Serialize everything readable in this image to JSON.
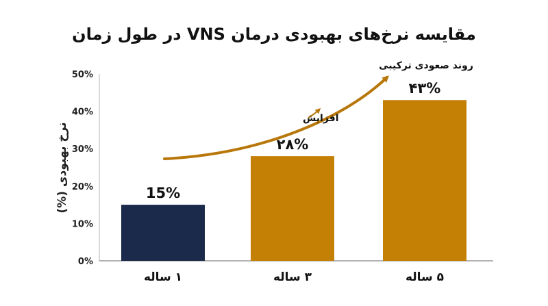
{
  "chart_data": {
    "type": "bar",
    "title": "مقایسه نرخ‌های بهبودی درمان VNS در طول زمان",
    "ylabel": "نرخ بهبودی (%)",
    "xlabel": "",
    "categories": [
      "۱ ساله",
      "۳ ساله",
      "۵ ساله"
    ],
    "values": [
      15,
      28,
      43
    ],
    "data_labels": [
      "15%",
      "۲۸%",
      "۴۳%"
    ],
    "ylim": [
      0,
      50
    ],
    "yticks": [
      0,
      10,
      20,
      30,
      40,
      50
    ],
    "ytick_labels": [
      "0%",
      "10%",
      "20%",
      "30%",
      "40%",
      "50%"
    ],
    "grid": false,
    "legend": "none",
    "bar_colors": [
      "#1b2a4a",
      "#c47f05",
      "#c47f05"
    ],
    "arrow_color": "#b8770a",
    "annotations": {
      "increase": "افزایش",
      "trend": "روند صعودی ترکیبی"
    }
  }
}
